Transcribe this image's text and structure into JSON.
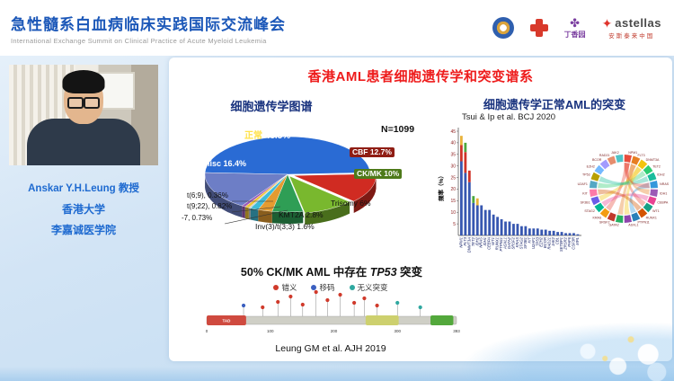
{
  "header": {
    "title": "急性髓系白血病临床实践国际交流峰会",
    "subtitle": "International Exchange Summit on Clinical Practice of Acute Myeloid Leukemia",
    "logos": {
      "dxy_label": "丁香园",
      "astellas_label": "astellas",
      "astellas_sub": "安斯泰来中国"
    }
  },
  "speaker": {
    "name": "Anskar Y.H.Leung 教授",
    "affiliation1": "香港大学",
    "affiliation2": "李嘉诚医学院"
  },
  "slide": {
    "title": "香港AML患者细胞遗传学和突变谱系",
    "left": {
      "pie_title": "细胞遗传学图谱",
      "n_label": "N=1099",
      "tp53_prefix": "50% CK/MK AML 中存在 ",
      "tp53_gene": "TP53",
      "tp53_suffix": " 突变",
      "citation": "Leung GM et al. AJH 2019"
    },
    "right": {
      "title": "细胞遗传学正常AML的突变",
      "citation": "Tsui & Ip et al. BCJ 2020",
      "ylabel": "频率（%）"
    }
  },
  "chart_data": [
    {
      "type": "pie",
      "title": "细胞遗传学图谱",
      "n": "N=1099",
      "slices": [
        {
          "name": "正常",
          "pct": "48.5%",
          "value": 48.5,
          "color": "#2a6bd4"
        },
        {
          "name": "CBF",
          "pct": "12.7%",
          "value": 12.7,
          "color": "#d02b22"
        },
        {
          "name": "CK/MK",
          "pct": "10%",
          "value": 10,
          "color": "#79b82e"
        },
        {
          "name": "Trisomy",
          "pct": "6%",
          "value": 6,
          "color": "#2f9e55"
        },
        {
          "name": "KMT2A",
          "pct": "2.8%",
          "value": 2.8,
          "color": "#e59b30"
        },
        {
          "name": "Inv(3)/t(3;3)",
          "pct": "1.6%",
          "value": 1.6,
          "color": "#3fbcd8"
        },
        {
          "name": "t(6;9)",
          "pct": "0.36%",
          "value": 0.36,
          "color": "#c9c9c9"
        },
        {
          "name": "t(9;22)",
          "pct": "0.82%",
          "value": 0.82,
          "color": "#f0c433"
        },
        {
          "name": "-7",
          "pct": "0.73%",
          "value": 0.73,
          "color": "#9b59b6"
        },
        {
          "name": "Misc",
          "pct": "16.4%",
          "value": 16.4,
          "color": "#6d7ec6"
        }
      ]
    },
    {
      "type": "lollipop",
      "title": "50% CK/MK AML 中存在 TP53 突变",
      "legend": [
        {
          "label": "错义",
          "color": "#d03a2b"
        },
        {
          "label": "移码",
          "color": "#3b5fc0"
        },
        {
          "label": "无义突变",
          "color": "#2fa8a0"
        }
      ],
      "protein_length": 393,
      "axis_ticks": [
        0,
        100,
        200,
        300,
        393
      ],
      "domains": [
        {
          "label": "TAD",
          "start": 0,
          "end": 62,
          "color": "#cf4a3f"
        },
        {
          "label": "",
          "start": 250,
          "end": 302,
          "color": "#cdd06e"
        },
        {
          "label": "",
          "start": 352,
          "end": 388,
          "color": "#53a83c"
        }
      ],
      "mutations": [
        {
          "pos": 58,
          "h": 12,
          "t": 1
        },
        {
          "pos": 88,
          "h": 10,
          "t": 0
        },
        {
          "pos": 112,
          "h": 16,
          "t": 0
        },
        {
          "pos": 132,
          "h": 22,
          "t": 0
        },
        {
          "pos": 151,
          "h": 13,
          "t": 0
        },
        {
          "pos": 172,
          "h": 27,
          "t": 0
        },
        {
          "pos": 190,
          "h": 18,
          "t": 0
        },
        {
          "pos": 210,
          "h": 24,
          "t": 0
        },
        {
          "pos": 232,
          "h": 15,
          "t": 0
        },
        {
          "pos": 248,
          "h": 20,
          "t": 0
        },
        {
          "pos": 268,
          "h": 12,
          "t": 0
        },
        {
          "pos": 300,
          "h": 15,
          "t": 2
        },
        {
          "pos": 336,
          "h": 10,
          "t": 2
        }
      ],
      "citation": "Leung GM et al. AJH 2019"
    },
    {
      "type": "bar",
      "title": "细胞遗传学正常AML的突变",
      "citation": "Tsui & Ip et al. BCJ 2020",
      "ylabel": "频率（%）",
      "ylim": [
        0,
        45
      ],
      "yticks": [
        5,
        10,
        15,
        20,
        25,
        30,
        35,
        40,
        45
      ],
      "genes": [
        "NPM1",
        "FLT3",
        "DNMT3A",
        "TET2",
        "IDH2",
        "NRAS",
        "IDH1",
        "CEBPA",
        "WT1",
        "RUNX1",
        "PTPN11",
        "ASXL1",
        "GATA2",
        "SRSF2",
        "KRAS",
        "STAG2",
        "SF3B1",
        "KIT",
        "U2AF1",
        "TP53",
        "EZH2",
        "BCOR",
        "RAD21",
        "JAK2",
        "CBL",
        "SETBP1",
        "ZRSR2",
        "PHF6",
        "CSF3R",
        "MPL"
      ],
      "values": [
        43,
        40,
        28,
        17,
        16,
        13,
        11,
        11,
        9,
        8,
        7,
        6,
        6,
        5,
        5,
        4,
        4,
        3,
        3,
        3,
        2.5,
        2.5,
        2,
        2,
        1.5,
        1.5,
        1,
        1,
        1,
        0.5
      ],
      "default_color": "#3757b0",
      "stacks": {
        "NPM1": [
          [
            "#3757b0",
            32
          ],
          [
            "#cf3328",
            7
          ],
          [
            "#e8b23a",
            4
          ]
        ],
        "FLT3": [
          [
            "#3757b0",
            27
          ],
          [
            "#cf3328",
            9
          ],
          [
            "#4ca83e",
            4
          ]
        ],
        "DNMT3A": [
          [
            "#3757b0",
            23
          ],
          [
            "#cf3328",
            5
          ]
        ],
        "TET2": [
          [
            "#3757b0",
            14
          ],
          [
            "#4ca83e",
            3
          ]
        ],
        "IDH2": [
          [
            "#3757b0",
            13
          ],
          [
            "#e8b23a",
            3
          ]
        ]
      }
    },
    {
      "type": "circos",
      "labels": [
        "NPM1",
        "FLT3",
        "DNMT3A",
        "TET2",
        "IDH2",
        "NRAS",
        "IDH1",
        "CEBPA",
        "WT1",
        "RUNX1",
        "PTPN11",
        "ASXL1",
        "GATA2",
        "SRSF2",
        "KRAS",
        "STAG2",
        "SF3B1",
        "KIT",
        "U2AF1",
        "TP53",
        "EZH2",
        "BCOR",
        "RAD21",
        "JAK2"
      ]
    }
  ]
}
